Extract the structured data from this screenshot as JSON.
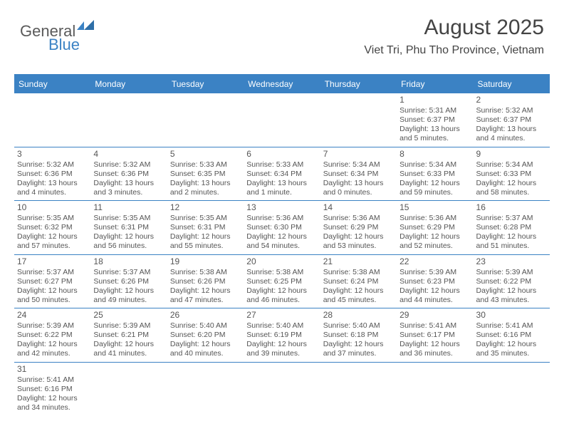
{
  "logo": {
    "text1": "General",
    "text2": "Blue"
  },
  "header": {
    "month_title": "August 2025",
    "location": "Viet Tri, Phu Tho Province, Vietnam"
  },
  "colors": {
    "accent": "#3b82c4",
    "text": "#4a4a4a",
    "header_text": "#ffffff",
    "background": "#ffffff"
  },
  "days_of_week": [
    "Sunday",
    "Monday",
    "Tuesday",
    "Wednesday",
    "Thursday",
    "Friday",
    "Saturday"
  ],
  "weeks": [
    [
      null,
      null,
      null,
      null,
      null,
      {
        "n": "1",
        "sr": "Sunrise: 5:31 AM",
        "ss": "Sunset: 6:37 PM",
        "dl1": "Daylight: 13 hours",
        "dl2": "and 5 minutes."
      },
      {
        "n": "2",
        "sr": "Sunrise: 5:32 AM",
        "ss": "Sunset: 6:37 PM",
        "dl1": "Daylight: 13 hours",
        "dl2": "and 4 minutes."
      }
    ],
    [
      {
        "n": "3",
        "sr": "Sunrise: 5:32 AM",
        "ss": "Sunset: 6:36 PM",
        "dl1": "Daylight: 13 hours",
        "dl2": "and 4 minutes."
      },
      {
        "n": "4",
        "sr": "Sunrise: 5:32 AM",
        "ss": "Sunset: 6:36 PM",
        "dl1": "Daylight: 13 hours",
        "dl2": "and 3 minutes."
      },
      {
        "n": "5",
        "sr": "Sunrise: 5:33 AM",
        "ss": "Sunset: 6:35 PM",
        "dl1": "Daylight: 13 hours",
        "dl2": "and 2 minutes."
      },
      {
        "n": "6",
        "sr": "Sunrise: 5:33 AM",
        "ss": "Sunset: 6:34 PM",
        "dl1": "Daylight: 13 hours",
        "dl2": "and 1 minute."
      },
      {
        "n": "7",
        "sr": "Sunrise: 5:34 AM",
        "ss": "Sunset: 6:34 PM",
        "dl1": "Daylight: 13 hours",
        "dl2": "and 0 minutes."
      },
      {
        "n": "8",
        "sr": "Sunrise: 5:34 AM",
        "ss": "Sunset: 6:33 PM",
        "dl1": "Daylight: 12 hours",
        "dl2": "and 59 minutes."
      },
      {
        "n": "9",
        "sr": "Sunrise: 5:34 AM",
        "ss": "Sunset: 6:33 PM",
        "dl1": "Daylight: 12 hours",
        "dl2": "and 58 minutes."
      }
    ],
    [
      {
        "n": "10",
        "sr": "Sunrise: 5:35 AM",
        "ss": "Sunset: 6:32 PM",
        "dl1": "Daylight: 12 hours",
        "dl2": "and 57 minutes."
      },
      {
        "n": "11",
        "sr": "Sunrise: 5:35 AM",
        "ss": "Sunset: 6:31 PM",
        "dl1": "Daylight: 12 hours",
        "dl2": "and 56 minutes."
      },
      {
        "n": "12",
        "sr": "Sunrise: 5:35 AM",
        "ss": "Sunset: 6:31 PM",
        "dl1": "Daylight: 12 hours",
        "dl2": "and 55 minutes."
      },
      {
        "n": "13",
        "sr": "Sunrise: 5:36 AM",
        "ss": "Sunset: 6:30 PM",
        "dl1": "Daylight: 12 hours",
        "dl2": "and 54 minutes."
      },
      {
        "n": "14",
        "sr": "Sunrise: 5:36 AM",
        "ss": "Sunset: 6:29 PM",
        "dl1": "Daylight: 12 hours",
        "dl2": "and 53 minutes."
      },
      {
        "n": "15",
        "sr": "Sunrise: 5:36 AM",
        "ss": "Sunset: 6:29 PM",
        "dl1": "Daylight: 12 hours",
        "dl2": "and 52 minutes."
      },
      {
        "n": "16",
        "sr": "Sunrise: 5:37 AM",
        "ss": "Sunset: 6:28 PM",
        "dl1": "Daylight: 12 hours",
        "dl2": "and 51 minutes."
      }
    ],
    [
      {
        "n": "17",
        "sr": "Sunrise: 5:37 AM",
        "ss": "Sunset: 6:27 PM",
        "dl1": "Daylight: 12 hours",
        "dl2": "and 50 minutes."
      },
      {
        "n": "18",
        "sr": "Sunrise: 5:37 AM",
        "ss": "Sunset: 6:26 PM",
        "dl1": "Daylight: 12 hours",
        "dl2": "and 49 minutes."
      },
      {
        "n": "19",
        "sr": "Sunrise: 5:38 AM",
        "ss": "Sunset: 6:26 PM",
        "dl1": "Daylight: 12 hours",
        "dl2": "and 47 minutes."
      },
      {
        "n": "20",
        "sr": "Sunrise: 5:38 AM",
        "ss": "Sunset: 6:25 PM",
        "dl1": "Daylight: 12 hours",
        "dl2": "and 46 minutes."
      },
      {
        "n": "21",
        "sr": "Sunrise: 5:38 AM",
        "ss": "Sunset: 6:24 PM",
        "dl1": "Daylight: 12 hours",
        "dl2": "and 45 minutes."
      },
      {
        "n": "22",
        "sr": "Sunrise: 5:39 AM",
        "ss": "Sunset: 6:23 PM",
        "dl1": "Daylight: 12 hours",
        "dl2": "and 44 minutes."
      },
      {
        "n": "23",
        "sr": "Sunrise: 5:39 AM",
        "ss": "Sunset: 6:22 PM",
        "dl1": "Daylight: 12 hours",
        "dl2": "and 43 minutes."
      }
    ],
    [
      {
        "n": "24",
        "sr": "Sunrise: 5:39 AM",
        "ss": "Sunset: 6:22 PM",
        "dl1": "Daylight: 12 hours",
        "dl2": "and 42 minutes."
      },
      {
        "n": "25",
        "sr": "Sunrise: 5:39 AM",
        "ss": "Sunset: 6:21 PM",
        "dl1": "Daylight: 12 hours",
        "dl2": "and 41 minutes."
      },
      {
        "n": "26",
        "sr": "Sunrise: 5:40 AM",
        "ss": "Sunset: 6:20 PM",
        "dl1": "Daylight: 12 hours",
        "dl2": "and 40 minutes."
      },
      {
        "n": "27",
        "sr": "Sunrise: 5:40 AM",
        "ss": "Sunset: 6:19 PM",
        "dl1": "Daylight: 12 hours",
        "dl2": "and 39 minutes."
      },
      {
        "n": "28",
        "sr": "Sunrise: 5:40 AM",
        "ss": "Sunset: 6:18 PM",
        "dl1": "Daylight: 12 hours",
        "dl2": "and 37 minutes."
      },
      {
        "n": "29",
        "sr": "Sunrise: 5:41 AM",
        "ss": "Sunset: 6:17 PM",
        "dl1": "Daylight: 12 hours",
        "dl2": "and 36 minutes."
      },
      {
        "n": "30",
        "sr": "Sunrise: 5:41 AM",
        "ss": "Sunset: 6:16 PM",
        "dl1": "Daylight: 12 hours",
        "dl2": "and 35 minutes."
      }
    ],
    [
      {
        "n": "31",
        "sr": "Sunrise: 5:41 AM",
        "ss": "Sunset: 6:16 PM",
        "dl1": "Daylight: 12 hours",
        "dl2": "and 34 minutes."
      },
      null,
      null,
      null,
      null,
      null,
      null
    ]
  ]
}
